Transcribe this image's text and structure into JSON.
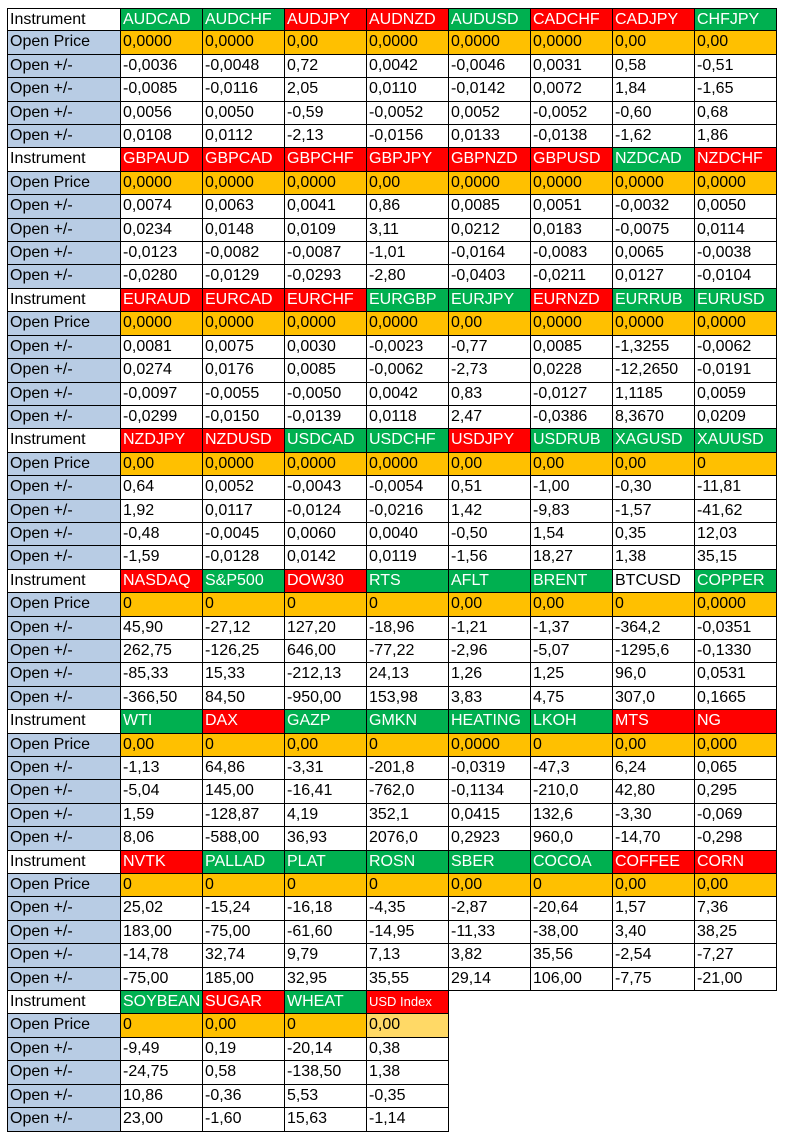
{
  "labels": {
    "instrument": "Instrument",
    "open_price": "Open Price",
    "open_change": "Open +/-"
  },
  "colors": {
    "green": "#00b050",
    "red": "#ff0000",
    "orange": "#ffc000",
    "blue_label": "#b8cce4"
  },
  "blocks": [
    {
      "instruments": [
        {
          "name": "AUDCAD",
          "color": "green"
        },
        {
          "name": "AUDCHF",
          "color": "green"
        },
        {
          "name": "AUDJPY",
          "color": "red"
        },
        {
          "name": "AUDNZD",
          "color": "red"
        },
        {
          "name": "AUDUSD",
          "color": "green"
        },
        {
          "name": "CADCHF",
          "color": "red"
        },
        {
          "name": "CADJPY",
          "color": "red"
        },
        {
          "name": "CHFJPY",
          "color": "green"
        }
      ],
      "open_price": [
        "0,0000",
        "0,0000",
        "0,00",
        "0,0000",
        "0,0000",
        "0,0000",
        "0,00",
        "0,00"
      ],
      "changes": [
        [
          "-0,0036",
          "-0,0048",
          "0,72",
          "0,0042",
          "-0,0046",
          "0,0031",
          "0,58",
          "-0,51"
        ],
        [
          "-0,0085",
          "-0,0116",
          "2,05",
          "0,0110",
          "-0,0142",
          "0,0072",
          "1,84",
          "-1,65"
        ],
        [
          "0,0056",
          "0,0050",
          "-0,59",
          "-0,0052",
          "0,0052",
          "-0,0052",
          "-0,60",
          "0,68"
        ],
        [
          "0,0108",
          "0,0112",
          "-2,13",
          "-0,0156",
          "0,0133",
          "-0,0138",
          "-1,62",
          "1,86"
        ]
      ]
    },
    {
      "instruments": [
        {
          "name": "GBPAUD",
          "color": "red"
        },
        {
          "name": "GBPCAD",
          "color": "red"
        },
        {
          "name": "GBPCHF",
          "color": "red"
        },
        {
          "name": "GBPJPY",
          "color": "red"
        },
        {
          "name": "GBPNZD",
          "color": "red"
        },
        {
          "name": "GBPUSD",
          "color": "red"
        },
        {
          "name": "NZDCAD",
          "color": "green"
        },
        {
          "name": "NZDCHF",
          "color": "red"
        }
      ],
      "open_price": [
        "0,0000",
        "0,0000",
        "0,0000",
        "0,00",
        "0,0000",
        "0,0000",
        "0,0000",
        "0,0000"
      ],
      "changes": [
        [
          "0,0074",
          "0,0063",
          "0,0041",
          "0,86",
          "0,0085",
          "0,0051",
          "-0,0032",
          "0,0050"
        ],
        [
          "0,0234",
          "0,0148",
          "0,0109",
          "3,11",
          "0,0212",
          "0,0183",
          "-0,0075",
          "0,0114"
        ],
        [
          "-0,0123",
          "-0,0082",
          "-0,0087",
          "-1,01",
          "-0,0164",
          "-0,0083",
          "0,0065",
          "-0,0038"
        ],
        [
          "-0,0280",
          "-0,0129",
          "-0,0293",
          "-2,80",
          "-0,0403",
          "-0,0211",
          "0,0127",
          "-0,0104"
        ]
      ]
    },
    {
      "instruments": [
        {
          "name": "EURAUD",
          "color": "red"
        },
        {
          "name": "EURCAD",
          "color": "red"
        },
        {
          "name": "EURCHF",
          "color": "red"
        },
        {
          "name": "EURGBP",
          "color": "green"
        },
        {
          "name": "EURJPY",
          "color": "green"
        },
        {
          "name": "EURNZD",
          "color": "red"
        },
        {
          "name": "EURRUB",
          "color": "green"
        },
        {
          "name": "EURUSD",
          "color": "green"
        }
      ],
      "open_price": [
        "0,0000",
        "0,0000",
        "0,0000",
        "0,0000",
        "0,00",
        "0,0000",
        "0,0000",
        "0,0000"
      ],
      "changes": [
        [
          "0,0081",
          "0,0075",
          "0,0030",
          "-0,0023",
          "-0,77",
          "0,0085",
          "-1,3255",
          "-0,0062"
        ],
        [
          "0,0274",
          "0,0176",
          "0,0085",
          "-0,0062",
          "-2,73",
          "0,0228",
          "-12,2650",
          "-0,0191"
        ],
        [
          "-0,0097",
          "-0,0055",
          "-0,0050",
          "0,0042",
          "0,83",
          "-0,0127",
          "1,1185",
          "0,0059"
        ],
        [
          "-0,0299",
          "-0,0150",
          "-0,0139",
          "0,0118",
          "2,47",
          "-0,0386",
          "8,3670",
          "0,0209"
        ]
      ]
    },
    {
      "instruments": [
        {
          "name": "NZDJPY",
          "color": "red"
        },
        {
          "name": "NZDUSD",
          "color": "red"
        },
        {
          "name": "USDCAD",
          "color": "green"
        },
        {
          "name": "USDCHF",
          "color": "green"
        },
        {
          "name": "USDJPY",
          "color": "red"
        },
        {
          "name": "USDRUB",
          "color": "green"
        },
        {
          "name": "XAGUSD",
          "color": "green"
        },
        {
          "name": "XAUUSD",
          "color": "green"
        }
      ],
      "open_price": [
        "0,00",
        "0,0000",
        "0,0000",
        "0,0000",
        "0,00",
        "0,00",
        "0,00",
        "0"
      ],
      "changes": [
        [
          "0,64",
          "0,0052",
          "-0,0043",
          "-0,0054",
          "0,51",
          "-1,00",
          "-0,30",
          "-11,81"
        ],
        [
          "1,92",
          "0,0117",
          "-0,0124",
          "-0,0216",
          "1,42",
          "-9,83",
          "-1,57",
          "-41,62"
        ],
        [
          "-0,48",
          "-0,0045",
          "0,0060",
          "0,0040",
          "-0,50",
          "1,54",
          "0,35",
          "12,03"
        ],
        [
          "-1,59",
          "-0,0128",
          "0,0142",
          "0,0119",
          "-1,56",
          "18,27",
          "1,38",
          "35,15"
        ]
      ]
    },
    {
      "instruments": [
        {
          "name": "NASDAQ",
          "color": "red"
        },
        {
          "name": "S&P500",
          "color": "green"
        },
        {
          "name": "DOW30",
          "color": "red"
        },
        {
          "name": "RTS",
          "color": "green"
        },
        {
          "name": "AFLT",
          "color": "green"
        },
        {
          "name": "BRENT",
          "color": "green"
        },
        {
          "name": "BTCUSD",
          "color": "white"
        },
        {
          "name": "COPPER",
          "color": "green"
        }
      ],
      "open_price": [
        "0",
        "0",
        "0",
        "0",
        "0,00",
        "0,00",
        "0",
        "0,0000"
      ],
      "changes": [
        [
          "45,90",
          "-27,12",
          "127,20",
          "-18,96",
          "-1,21",
          "-1,37",
          "-364,2",
          "-0,0351"
        ],
        [
          "262,75",
          "-126,25",
          "646,00",
          "-77,22",
          "-2,96",
          "-5,07",
          "-1295,6",
          "-0,1330"
        ],
        [
          "-85,33",
          "15,33",
          "-212,13",
          "24,13",
          "1,26",
          "1,25",
          "96,0",
          "0,0531"
        ],
        [
          "-366,50",
          "84,50",
          "-950,00",
          "153,98",
          "3,83",
          "4,75",
          "307,0",
          "0,1665"
        ]
      ]
    },
    {
      "instruments": [
        {
          "name": "WTI",
          "color": "green"
        },
        {
          "name": "DAX",
          "color": "red"
        },
        {
          "name": "GAZP",
          "color": "green"
        },
        {
          "name": "GMKN",
          "color": "green"
        },
        {
          "name": "HEATING",
          "color": "green"
        },
        {
          "name": "LKOH",
          "color": "green"
        },
        {
          "name": "MTS",
          "color": "red"
        },
        {
          "name": "NG",
          "color": "red"
        }
      ],
      "open_price": [
        "0,00",
        "0",
        "0,00",
        "0",
        "0,0000",
        "0",
        "0,00",
        "0,000"
      ],
      "changes": [
        [
          "-1,13",
          "64,86",
          "-3,31",
          "-201,8",
          "-0,0319",
          "-47,3",
          "6,24",
          "0,065"
        ],
        [
          "-5,04",
          "145,00",
          "-16,41",
          "-762,0",
          "-0,1134",
          "-210,0",
          "42,80",
          "0,295"
        ],
        [
          "1,59",
          "-128,87",
          "4,19",
          "352,1",
          "0,0415",
          "132,6",
          "-3,30",
          "-0,069"
        ],
        [
          "8,06",
          "-588,00",
          "36,93",
          "2076,0",
          "0,2923",
          "960,0",
          "-14,70",
          "-0,298"
        ]
      ]
    },
    {
      "instruments": [
        {
          "name": "NVTK",
          "color": "red"
        },
        {
          "name": "PALLAD",
          "color": "green"
        },
        {
          "name": "PLAT",
          "color": "green"
        },
        {
          "name": "ROSN",
          "color": "green"
        },
        {
          "name": "SBER",
          "color": "green"
        },
        {
          "name": "COCOA",
          "color": "green"
        },
        {
          "name": "COFFEE",
          "color": "red"
        },
        {
          "name": "CORN",
          "color": "red"
        }
      ],
      "open_price": [
        "0",
        "0",
        "0",
        "0",
        "0,00",
        "0",
        "0,00",
        "0,00"
      ],
      "changes": [
        [
          "25,02",
          "-15,24",
          "-16,18",
          "-4,35",
          "-2,87",
          "-20,64",
          "1,57",
          "7,36"
        ],
        [
          "183,00",
          "-75,00",
          "-61,60",
          "-14,95",
          "-11,33",
          "-38,00",
          "3,40",
          "38,25"
        ],
        [
          "-14,78",
          "32,74",
          "9,79",
          "7,13",
          "3,82",
          "35,56",
          "-2,54",
          "-7,27"
        ],
        [
          "-75,00",
          "185,00",
          "32,95",
          "35,55",
          "29,14",
          "106,00",
          "-7,75",
          "-21,00"
        ]
      ]
    },
    {
      "instruments": [
        {
          "name": "SOYBEAN",
          "color": "green"
        },
        {
          "name": "SUGAR",
          "color": "red"
        },
        {
          "name": "WHEAT",
          "color": "green"
        },
        {
          "name": "USD Index",
          "color": "red"
        }
      ],
      "open_price": [
        "0",
        "0,00",
        "0",
        "0,00"
      ],
      "changes": [
        [
          "-9,49",
          "0,19",
          "-20,14",
          "0,38"
        ],
        [
          "-24,75",
          "0,58",
          "-138,50",
          "1,38"
        ],
        [
          "10,86",
          "-0,36",
          "5,53",
          "-0,35"
        ],
        [
          "23,00",
          "-1,60",
          "15,63",
          "-1,14"
        ]
      ]
    }
  ]
}
